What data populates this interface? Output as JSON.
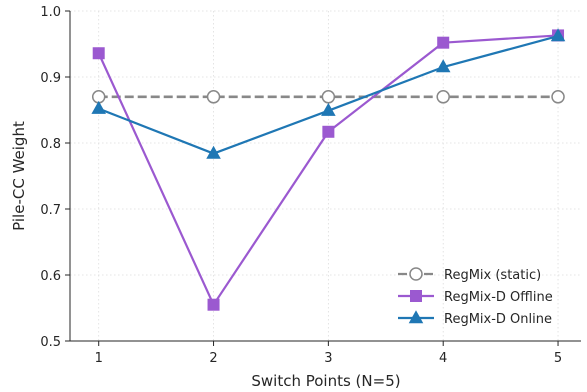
{
  "chart_data": {
    "type": "line",
    "title": "",
    "xlabel": "Switch Points (N=5)",
    "ylabel": "Pile-CC Weight",
    "x": [
      1,
      2,
      3,
      4,
      5
    ],
    "xlim": [
      0.75,
      5.2
    ],
    "ylim": [
      0.5,
      1.0
    ],
    "xticks": [
      "1",
      "2",
      "3",
      "4",
      "5"
    ],
    "yticks": [
      "0.5",
      "0.6",
      "0.7",
      "0.8",
      "0.9",
      "1.0"
    ],
    "grid": true,
    "legend_position": "bottom-right",
    "series": [
      {
        "name": "RegMix (static)",
        "values": [
          0.87,
          0.87,
          0.87,
          0.87,
          0.87
        ],
        "color": "#888888",
        "style": "dashed",
        "marker": "hollow-circle"
      },
      {
        "name": "RegMix-D Offline",
        "values": [
          0.936,
          0.555,
          0.817,
          0.952,
          0.963
        ],
        "color": "#9b59d0",
        "style": "solid",
        "marker": "square"
      },
      {
        "name": "RegMix-D Online",
        "values": [
          0.852,
          0.784,
          0.849,
          0.915,
          0.962
        ],
        "color": "#1f77b4",
        "style": "solid",
        "marker": "triangle"
      }
    ]
  }
}
